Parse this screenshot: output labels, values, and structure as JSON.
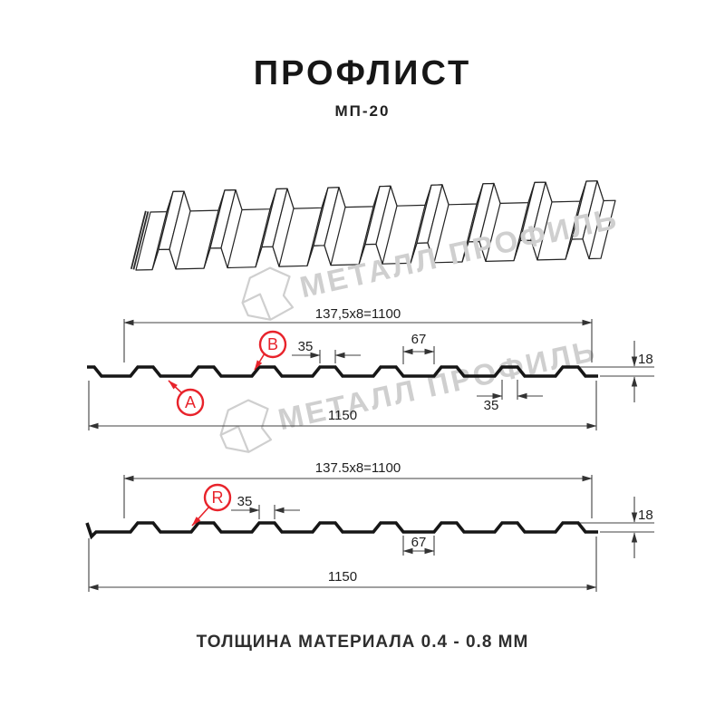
{
  "header": {
    "title": "ПРОФЛИСТ",
    "subtitle": "МП-20"
  },
  "watermark": {
    "text": "МЕТАЛЛ ПРОФИЛЬ"
  },
  "colors": {
    "accent_red": "#e8232b",
    "line_black": "#161616",
    "watermark_gray": "#cfcfcf"
  },
  "section_top": {
    "pitch_label": "137,5x8=1100",
    "crest_width_label": "35",
    "valley_width_label": "67",
    "height_label": "18",
    "crest_width_label_2": "35",
    "overall_width_label": "1150",
    "marker_a": "A",
    "marker_b": "B"
  },
  "section_bottom": {
    "pitch_label": "137.5x8=1100",
    "crest_width_label": "35",
    "valley_width_label": "67",
    "height_label": "18",
    "overall_width_label": "1150",
    "marker_r": "R"
  },
  "footer": {
    "text": "ТОЛЩИНА МАТЕРИАЛА 0.4 - 0.8 ММ"
  }
}
